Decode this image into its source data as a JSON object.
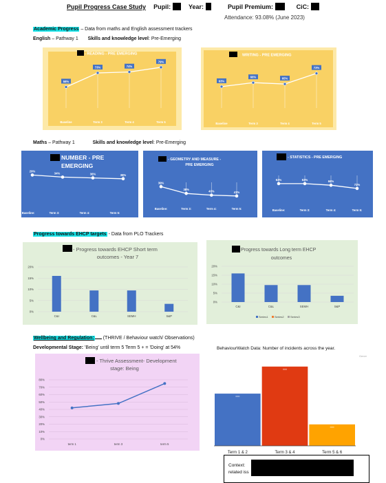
{
  "header": {
    "title": "Pupil Progress Case Study",
    "pupil_label": "Pupil:",
    "year_label": "Year:",
    "premium_label": "Pupil Premium:",
    "cic_label": "CiC:",
    "attendance": "Attendance: 93.08% (June 2023)"
  },
  "academic": {
    "heading": "Academic Progress",
    "subtitle": "– Data from maths and English assessment trackers",
    "english_label": "English",
    "english_pathway": "– Pathway 1",
    "english_skills_label": "Skills and knowledge level",
    "english_skills_value": ": Pre-Emerging",
    "maths_label": "Maths",
    "maths_pathway": "– Pathway 1",
    "maths_skills_label": "Skills and knowledge level",
    "maths_skills_value": ": Pre-Emerging"
  },
  "ehcp": {
    "heading": "Progress towards EHCP targets",
    "subtitle": "- Data from PLO Trackers"
  },
  "wellbeing": {
    "heading": "Wellbeing and Regulation:",
    "subtitle": "(THRIVE / Behaviour watch/ Observations)",
    "stage_label": "Developmental Stage:",
    "stage_value": "'Being' until term 5     Term 5 + = 'Doing' at 54%",
    "behaviour_title": "BehaviourWatch Data: Number of incidents across the year.",
    "context_label": "Context:",
    "context_value": "related iss"
  },
  "charts": {
    "reading": {
      "title": "- READING - PRE EMERGING",
      "colors": {
        "bg": "#f9d164",
        "frame": "#fde9a8",
        "line": "#ffffff",
        "marker": "#4472c4",
        "text": "#ffffff"
      },
      "chart_data": {
        "type": "line",
        "categories": [
          "Baseline",
          "Term 3",
          "Term 4",
          "Term 5"
        ],
        "values": [
          58,
          73,
          74,
          79
        ],
        "labels": [
          "58%",
          "73%",
          "74%",
          "79%"
        ],
        "ylim": [
          40,
          84
        ]
      }
    },
    "writing": {
      "title": "WRITING - PRE EMERGING",
      "colors": {
        "bg": "#f9d164",
        "frame": "#fde9a8",
        "line": "#ffffff",
        "marker": "#4472c4",
        "text": "#ffffff"
      },
      "chart_data": {
        "type": "line",
        "categories": [
          "Baseline",
          "Term 3",
          "Term 4",
          "Term 5"
        ],
        "values": [
          63,
          66,
          65,
          73
        ],
        "labels": [
          "63%",
          "66%",
          "65%",
          "73%"
        ],
        "ylim": [
          50,
          78
        ]
      }
    },
    "number": {
      "title_line1": "NUMBER - PRE",
      "title_line2": "EMERGING",
      "colors": {
        "bg": "#4472c4",
        "line": "#ffffff",
        "marker": "#ffffff",
        "text": "#ffffff"
      },
      "chart_data": {
        "type": "line",
        "categories": [
          "Baseline",
          "Term 3",
          "Term 4",
          "Term 5"
        ],
        "values": [
          29,
          34,
          36,
          38
        ],
        "labels": [
          "29%",
          "34%",
          "36%",
          "38%"
        ],
        "ylim": [
          20,
          40
        ]
      }
    },
    "geometry": {
      "title_line1": "- GEOMETRY AND MEASURE -",
      "title_line2": "PRE EMERGING",
      "colors": {
        "bg": "#4472c4",
        "line": "#ffffff",
        "marker": "#ffffff",
        "text": "#ffffff"
      },
      "chart_data": {
        "type": "line",
        "categories": [
          "Baseline",
          "Term 3",
          "Term 4",
          "Term 5"
        ],
        "values": [
          30,
          38,
          40,
          41
        ],
        "labels": [
          "30%",
          "38%",
          "40%",
          "41%"
        ],
        "ylim": [
          20,
          46
        ]
      }
    },
    "statistics": {
      "title": "- STATISTICS - PRE EMERGING",
      "colors": {
        "bg": "#4472c4",
        "line": "#ffffff",
        "marker": "#ffffff",
        "text": "#ffffff"
      },
      "chart_data": {
        "type": "line",
        "categories": [
          "Baseline",
          "Term 3",
          "Term 4",
          "Term 5"
        ],
        "values": [
          63,
          63,
          66,
          72
        ],
        "labels": [
          "63%",
          "63%",
          "66%",
          "72%"
        ],
        "ylim": [
          40,
          76
        ]
      }
    },
    "ehcp_short": {
      "title_line1": "- Progress towards EHCP Short term",
      "title_line2": "outcomes - Year 7",
      "colors": {
        "bg": "#e2efda",
        "bar": "#4472c4",
        "grid": "#d8d8d8"
      },
      "chart_data": {
        "type": "bar",
        "categories": [
          "C&I",
          "C&L",
          "SEMH",
          "S&P"
        ],
        "values": [
          16,
          9.5,
          9.5,
          3.5
        ],
        "yticks": [
          "0%",
          "5%",
          "10%",
          "15%",
          "20%"
        ],
        "ylim": [
          0,
          20
        ]
      }
    },
    "ehcp_long": {
      "title_line1": "Progress towards Long term EHCP",
      "title_line2": "outcomes",
      "colors": {
        "bg": "#e2efda",
        "bar": "#4472c4",
        "grid": "#d8d8d8",
        "series2": "#ed7d31",
        "series3": "#a5a5a5"
      },
      "chart_data": {
        "type": "bar",
        "categories": [
          "C&I",
          "C&L",
          "SEMH",
          "S&P"
        ],
        "values": [
          16,
          9.5,
          9.5,
          3.5
        ],
        "yticks": [
          "0%",
          "5%",
          "10%",
          "15%",
          "20%"
        ],
        "ylim": [
          0,
          20
        ],
        "legend": [
          "Series1",
          "Series2",
          "Series3"
        ]
      }
    },
    "thrive": {
      "title_line1": "- Thrive Assessment- Development",
      "title_line2": "stage: Being",
      "colors": {
        "bg": "#f2d4f5",
        "line": "#4472c4",
        "grid": "#d8b8dc"
      },
      "chart_data": {
        "type": "line",
        "categories": [
          "term 1",
          "term 3",
          "term 5"
        ],
        "values": [
          42,
          48,
          75
        ],
        "yticks": [
          "0%",
          "10%",
          "20%",
          "30%",
          "40%",
          "50%",
          "60%",
          "70%",
          "80%"
        ],
        "ylim": [
          0,
          80
        ]
      }
    },
    "behaviour": {
      "colors": {
        "bars": [
          "#4472c4",
          "#e03a12",
          "#ffa300"
        ],
        "axis": "#444444"
      },
      "chart_data": {
        "type": "bar",
        "categories": [
          "Term 1 & 2",
          "Term 3 & 4",
          "Term 5 & 6"
        ],
        "values": [
          56,
          85,
          23
        ],
        "ylim": [
          0,
          90
        ],
        "legend": [
          "Genre"
        ]
      }
    }
  }
}
